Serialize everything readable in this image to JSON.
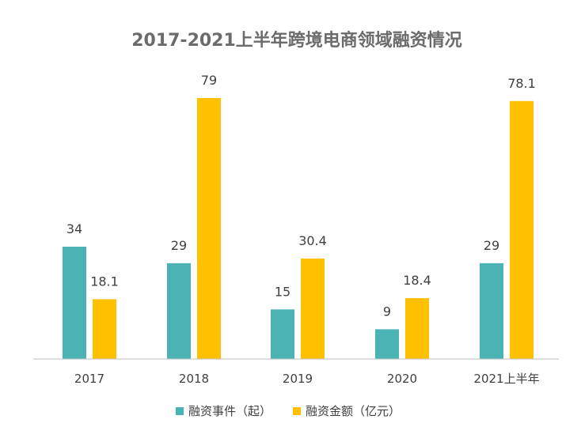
{
  "chart_data": {
    "type": "bar",
    "title": "2017-2021上半年跨境电商领域融资情况",
    "categories": [
      "2017",
      "2018",
      "2019",
      "2020",
      "2021上半年"
    ],
    "series": [
      {
        "name": "融资事件（起）",
        "color": "#4bb3b3",
        "values": [
          34,
          29,
          15,
          9,
          29
        ],
        "labels": [
          "34",
          "29",
          "15",
          "9",
          "29"
        ]
      },
      {
        "name": "融资金额（亿元）",
        "color": "#ffc000",
        "values": [
          18.1,
          79,
          30.4,
          18.4,
          78.1
        ],
        "labels": [
          "18.1",
          "79",
          "30.4",
          "18.4",
          "78.1"
        ]
      }
    ],
    "xlabel": "",
    "ylabel": "",
    "ylim": [
      0,
      80
    ],
    "grid": false,
    "legend_position": "bottom",
    "axis_color": "#bfbfbf"
  }
}
